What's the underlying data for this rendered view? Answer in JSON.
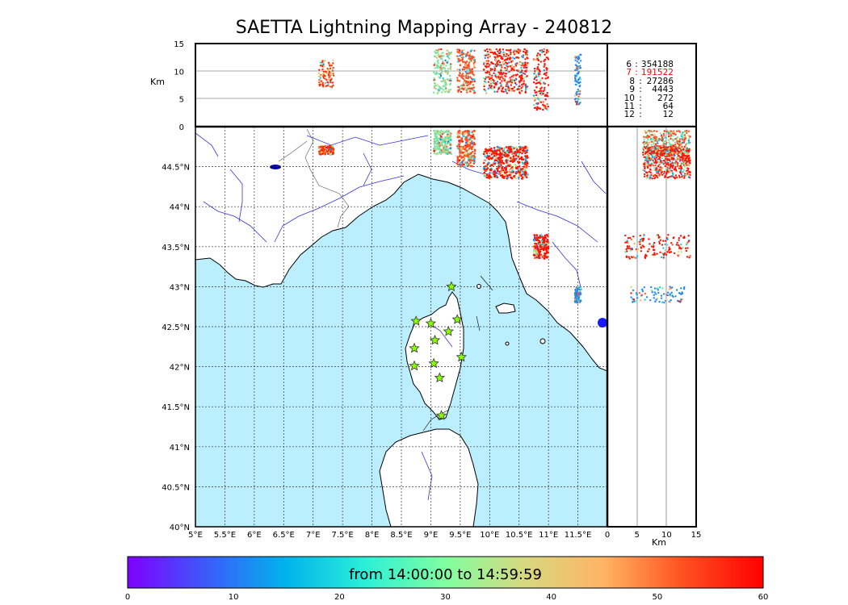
{
  "title": "SAETTA Lightning Mapping Array - 240812",
  "altitude_panel": {
    "ylabel": "Km",
    "yticks": [
      "0",
      "5",
      "10",
      "15"
    ]
  },
  "side_panel": {
    "xlabel": "Km",
    "xticks": [
      "0",
      "5",
      "10",
      "15"
    ]
  },
  "map": {
    "lon_ticks": [
      "5°E",
      "5.5°E",
      "6°E",
      "6.5°E",
      "7°E",
      "7.5°E",
      "8°E",
      "8.5°E",
      "9°E",
      "9.5°E",
      "10°E",
      "10.5°E",
      "11°E",
      "11.5°E"
    ],
    "lat_ticks": [
      "40°N",
      "40.5°N",
      "41°N",
      "41.5°N",
      "42°N",
      "42.5°N",
      "43°N",
      "43.5°N",
      "44°N",
      "44.5°N"
    ],
    "lon_range": [
      5,
      12
    ],
    "lat_range": [
      40,
      45
    ],
    "sea_color": "#bbeeff",
    "land_color": "#ffffff",
    "river_color": "#3333dd",
    "station_color": "#88ff00",
    "stations": [
      {
        "lon": 9.35,
        "lat": 43.0
      },
      {
        "lon": 8.75,
        "lat": 42.57
      },
      {
        "lon": 9.0,
        "lat": 42.54
      },
      {
        "lon": 9.45,
        "lat": 42.59
      },
      {
        "lon": 9.3,
        "lat": 42.44
      },
      {
        "lon": 9.07,
        "lat": 42.33
      },
      {
        "lon": 8.72,
        "lat": 42.23
      },
      {
        "lon": 9.52,
        "lat": 42.12
      },
      {
        "lon": 9.05,
        "lat": 42.04
      },
      {
        "lon": 8.72,
        "lat": 42.01
      },
      {
        "lon": 9.15,
        "lat": 41.86
      },
      {
        "lon": 9.18,
        "lat": 41.39
      }
    ],
    "lightning_clusters": [
      {
        "lon": [
          7.1,
          7.35
        ],
        "lat": [
          44.65,
          44.76
        ],
        "alt": [
          7,
          12
        ],
        "color": "#ff3000"
      },
      {
        "lon": [
          9.05,
          9.35
        ],
        "lat": [
          44.65,
          44.95
        ],
        "alt": [
          6,
          14
        ],
        "color": "#7fe0a0"
      },
      {
        "lon": [
          9.45,
          9.75
        ],
        "lat": [
          44.5,
          44.95
        ],
        "alt": [
          6,
          14
        ],
        "color": "#ff5020"
      },
      {
        "lon": [
          9.9,
          10.65
        ],
        "lat": [
          44.35,
          44.75
        ],
        "alt": [
          6,
          14
        ],
        "color": "#ff1500"
      },
      {
        "lon": [
          10.75,
          11.0
        ],
        "lat": [
          43.35,
          43.65
        ],
        "alt": [
          3,
          14
        ],
        "color": "#ff1000"
      },
      {
        "lon": [
          11.45,
          11.55
        ],
        "lat": [
          42.8,
          43.0
        ],
        "alt": [
          4,
          13
        ],
        "color": "#2288ee"
      }
    ]
  },
  "stats": [
    {
      "k": "6",
      "v": "354188",
      "highlight": false
    },
    {
      "k": "7",
      "v": "191522",
      "highlight": true
    },
    {
      "k": "8",
      "v": "27286",
      "highlight": false
    },
    {
      "k": "9",
      "v": "4443",
      "highlight": false
    },
    {
      "k": "10",
      "v": "272",
      "highlight": false
    },
    {
      "k": "11",
      "v": "64",
      "highlight": false
    },
    {
      "k": "12",
      "v": "12",
      "highlight": false
    }
  ],
  "colorbar": {
    "label": "from 14:00:00 to 14:59:59",
    "ticks": [
      "0",
      "10",
      "20",
      "30",
      "40",
      "50",
      "60"
    ],
    "colors": [
      "#7f00ff",
      "#3a5cfa",
      "#00b4ec",
      "#2cf0d8",
      "#80ffa0",
      "#d8d880",
      "#ffb464",
      "#ff5020",
      "#ff0000"
    ]
  }
}
